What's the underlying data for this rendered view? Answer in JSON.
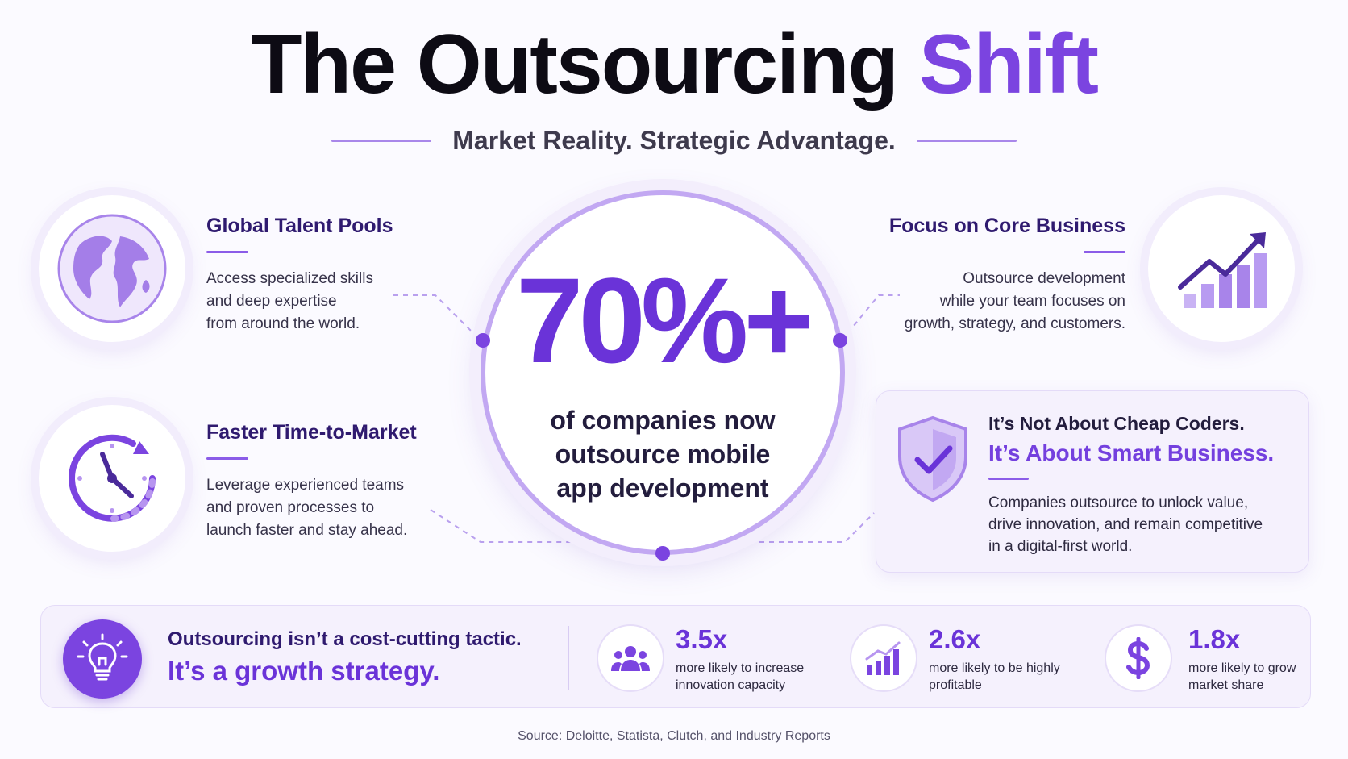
{
  "title": {
    "main": "The Outsourcing",
    "accent": "Shift"
  },
  "subtitle": "Market Reality. Strategic Advantage.",
  "features": {
    "global": {
      "title": "Global Talent Pools",
      "lines": [
        "Access specialized skills",
        "and deep expertise",
        "from around the world."
      ],
      "icon": "globe-icon"
    },
    "faster": {
      "title": "Faster Time-to-Market",
      "lines": [
        "Leverage experienced teams",
        "and proven processes to",
        "launch faster and stay ahead."
      ],
      "icon": "clock-icon"
    },
    "focus": {
      "title": "Focus on Core Business",
      "lines": [
        "Outsource development",
        "while your team focuses on",
        "growth, strategy, and customers."
      ],
      "icon": "growth-chart-icon"
    }
  },
  "center": {
    "value": "70%+",
    "caption": [
      "of companies now",
      "outsource mobile",
      "app development"
    ]
  },
  "card": {
    "line1": "It’s Not About Cheap Coders.",
    "line2": "It’s About Smart Business.",
    "body": [
      "Companies outsource to unlock value,",
      "drive innovation, and remain competitive",
      "in a digital-first world."
    ],
    "icon": "shield-check-icon"
  },
  "bottom": {
    "line1": "Outsourcing isn’t a cost-cutting tactic.",
    "line2": "It’s a growth strategy.",
    "icon": "lightbulb-icon",
    "stats": [
      {
        "value": "3.5x",
        "desc": [
          "more likely to increase",
          "innovation capacity"
        ],
        "icon": "team-icon"
      },
      {
        "value": "2.6x",
        "desc": [
          "more likely to be highly",
          "profitable"
        ],
        "icon": "bar-chart-icon"
      },
      {
        "value": "1.8x",
        "desc": [
          "more likely to grow",
          "market share"
        ],
        "icon": "dollar-icon"
      }
    ]
  },
  "source": "Source: Deloitte, Statista, Clutch, and Industry Reports",
  "colors": {
    "accent": "#7b44e0",
    "deep": "#2f1a6f",
    "light": "#f5f1fd"
  }
}
